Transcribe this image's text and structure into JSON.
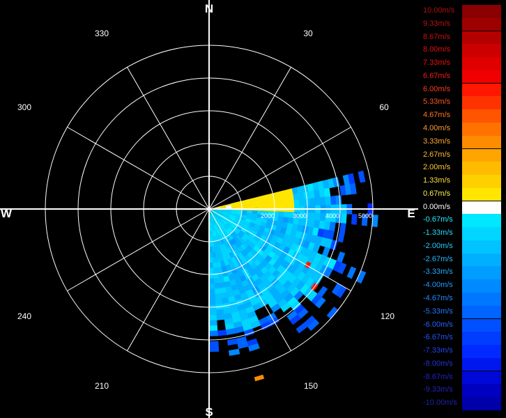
{
  "chart_data": {
    "type": "polar-ppi",
    "compass": {
      "north": "N",
      "south": "S",
      "east": "E",
      "west": "W"
    },
    "azimuth_labels": [
      "30",
      "60",
      "120",
      "150",
      "210",
      "240",
      "300",
      "330"
    ],
    "range_labels": [
      "2000",
      "3000",
      "4000",
      "5000"
    ],
    "range_max": 5000,
    "legend": [
      {
        "label": "10.00m/s",
        "color": "#8b0000",
        "text_color": "#b01010"
      },
      {
        "label": "9.33m/s",
        "color": "#9e0000",
        "text_color": "#c01010"
      },
      {
        "label": "8.67m/s",
        "color": "#b40000",
        "text_color": "#d01010"
      },
      {
        "label": "8.00m/s",
        "color": "#cc0000",
        "text_color": "#e01010"
      },
      {
        "label": "7.33m/s",
        "color": "#e00000",
        "text_color": "#ee1010"
      },
      {
        "label": "6.67m/s",
        "color": "#f00000",
        "text_color": "#f81a1a"
      },
      {
        "label": "6.00m/s",
        "color": "#ff1800",
        "text_color": "#ff3a1a"
      },
      {
        "label": "5.33m/s",
        "color": "#ff3300",
        "text_color": "#ff5522"
      },
      {
        "label": "4.67m/s",
        "color": "#ff5500",
        "text_color": "#ff7722"
      },
      {
        "label": "4.00m/s",
        "color": "#ff7200",
        "text_color": "#ff9933"
      },
      {
        "label": "3.33m/s",
        "color": "#ff8c00",
        "text_color": "#ffaa33"
      },
      {
        "label": "2.67m/s",
        "color": "#ffa500",
        "text_color": "#ffbb33"
      },
      {
        "label": "2.00m/s",
        "color": "#ffbb00",
        "text_color": "#ffcc33"
      },
      {
        "label": "1.33m/s",
        "color": "#ffd000",
        "text_color": "#ffdd44"
      },
      {
        "label": "0.67m/s",
        "color": "#ffe600",
        "text_color": "#ffee55"
      },
      {
        "label": "0.00m/s",
        "color": "#ffffff",
        "text_color": "#ffffff"
      },
      {
        "label": "-0.67m/s",
        "color": "#00e8ff",
        "text_color": "#22eeff"
      },
      {
        "label": "-1.33m/s",
        "color": "#00d6ff",
        "text_color": "#22ddff"
      },
      {
        "label": "-2.00m/s",
        "color": "#00c3ff",
        "text_color": "#22ccff"
      },
      {
        "label": "-2.67m/s",
        "color": "#00b0ff",
        "text_color": "#22bbff"
      },
      {
        "label": "-3.33m/s",
        "color": "#009dff",
        "text_color": "#22aaff"
      },
      {
        "label": "-4.00m/s",
        "color": "#008aff",
        "text_color": "#2299ff"
      },
      {
        "label": "-4.67m/s",
        "color": "#0077ff",
        "text_color": "#2288ff"
      },
      {
        "label": "-5.33m/s",
        "color": "#0064ff",
        "text_color": "#2277ff"
      },
      {
        "label": "-6.00m/s",
        "color": "#0050ff",
        "text_color": "#2266ff"
      },
      {
        "label": "-6.67m/s",
        "color": "#003dff",
        "text_color": "#2255ff"
      },
      {
        "label": "-7.33m/s",
        "color": "#002aff",
        "text_color": "#2244ee"
      },
      {
        "label": "-8.00m/s",
        "color": "#0018ee",
        "text_color": "#2233dd"
      },
      {
        "label": "-8.67m/s",
        "color": "#0008d8",
        "text_color": "#2222cc"
      },
      {
        "label": "-9.33m/s",
        "color": "#0000c0",
        "text_color": "#2222bb"
      },
      {
        "label": "-10.00m/s",
        "color": "#0000a8",
        "text_color": "#2222aa"
      }
    ],
    "velocity_field": {
      "azimuth_start_deg": 76,
      "azimuth_end_deg": 180,
      "azimuth_bin_deg": 4,
      "range_bin_m": 160,
      "dominant_velocity_ms": -2.0,
      "near_zero_band_azimuth_deg": [
        76,
        90
      ],
      "outlier_velocity_ms": 6.0
    }
  }
}
